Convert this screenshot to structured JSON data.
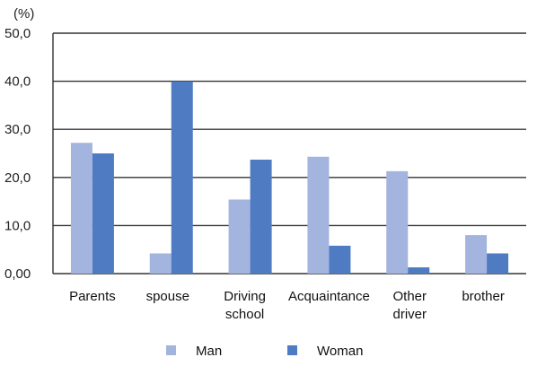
{
  "chart_data": {
    "type": "bar",
    "unit_label": "(%)",
    "categories": [
      [
        "Parents"
      ],
      [
        "spouse"
      ],
      [
        "Driving",
        "school"
      ],
      [
        "Acquaintance"
      ],
      [
        "Other",
        "driver"
      ],
      [
        "brother"
      ]
    ],
    "series": [
      {
        "name": "Man",
        "color": "#a3b4df",
        "values": [
          27.2,
          4.2,
          15.4,
          24.3,
          21.3,
          8.0
        ]
      },
      {
        "name": "Woman",
        "color": "#4f7bc2",
        "values": [
          25.0,
          40.0,
          23.7,
          5.8,
          1.3,
          4.2
        ]
      }
    ],
    "ylim": [
      0,
      50
    ],
    "yticks": [
      "0,00",
      "10,0",
      "20,0",
      "30,0",
      "40,0",
      "50,0"
    ],
    "grid": true,
    "legend_position": "bottom"
  }
}
